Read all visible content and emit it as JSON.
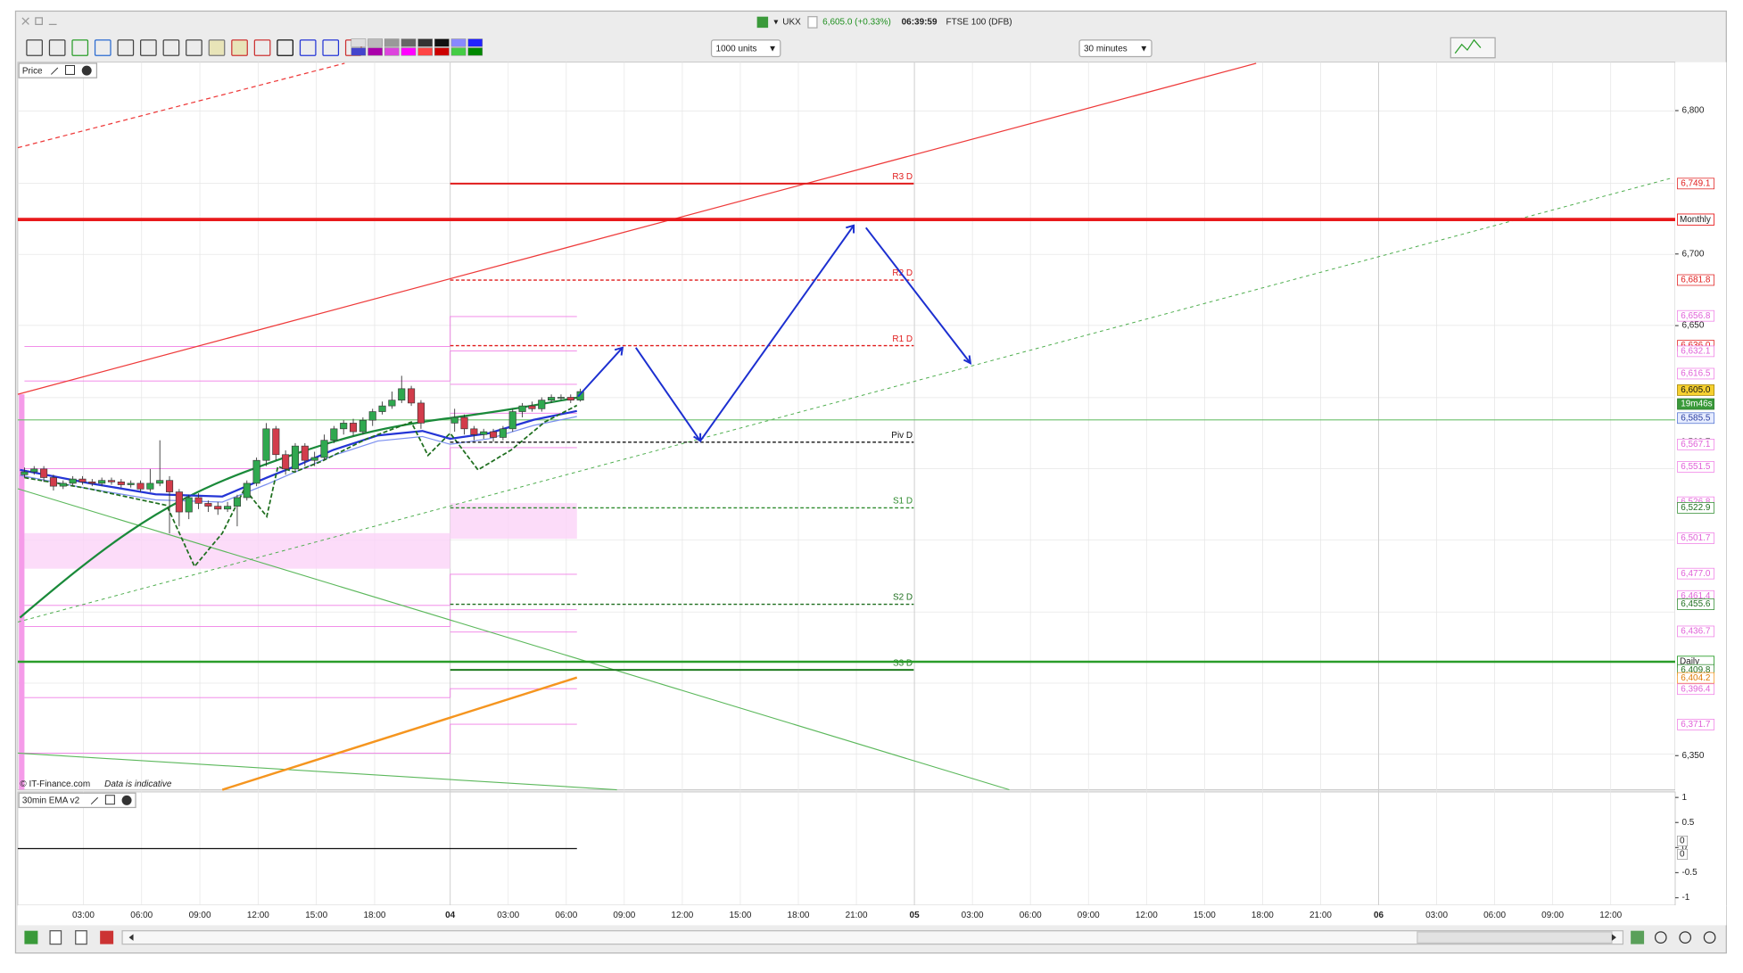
{
  "window": {
    "symbol": "UKX",
    "quote": "6,605.0 (+0.33%)",
    "time": "06:39:59",
    "instrument": "FTSE 100 (DFB)"
  },
  "toolbar": {
    "units": "1000 units",
    "interval": "30 minutes"
  },
  "panels": {
    "price": "Price",
    "indicator": "30min EMA v2",
    "copyright": "© IT-Finance.com",
    "disclaimer": "Data is indicative"
  },
  "price_axis": {
    "ylim": [
      6327,
      6833
    ],
    "yticks": [
      {
        "value": 6800,
        "label": "6,800"
      },
      {
        "value": 6700,
        "label": "6,700"
      },
      {
        "value": 6650,
        "label": "6,650"
      },
      {
        "value": 6350,
        "label": "6,350"
      }
    ]
  },
  "indicator_axis": {
    "ylim": [
      -1.15,
      1.11
    ],
    "yticks": [
      1,
      0.5,
      0,
      -0.5,
      -1
    ],
    "zero_tags": [
      "0",
      "0"
    ]
  },
  "time_axis": {
    "first_day": [
      "03:00",
      "06:00",
      "09:00",
      "12:00",
      "15:00",
      "18:00"
    ],
    "following": [
      "04",
      "03:00",
      "06:00",
      "09:00",
      "12:00",
      "15:00",
      "18:00",
      "21:00",
      "05",
      "03:00",
      "06:00",
      "09:00",
      "12:00",
      "15:00",
      "18:00",
      "21:00",
      "06",
      "03:00",
      "06:00",
      "09:00",
      "12:00"
    ]
  },
  "candles": {
    "open": [
      6546,
      6548,
      6550,
      6544,
      6538,
      6540,
      6543,
      6541,
      6540,
      6542,
      6541,
      6539,
      6540,
      6536,
      6540,
      6542,
      6534,
      6520,
      6530,
      6526,
      6524,
      6522,
      6524,
      6530,
      6540,
      6556,
      6578,
      6560,
      6550,
      6566,
      6556,
      6558,
      6570,
      6578,
      6582,
      6576,
      6584,
      6590,
      6594,
      6598,
      6606,
      6596,
      6582,
      6586,
      6578,
      6574,
      6576,
      6572,
      6578,
      6590,
      6594,
      6592,
      6598,
      6600,
      6600,
      6598
    ],
    "high": [
      6551,
      6552,
      6552,
      6546,
      6542,
      6545,
      6545,
      6543,
      6544,
      6544,
      6543,
      6542,
      6542,
      6550,
      6570,
      6545,
      6536,
      6532,
      6533,
      6528,
      6527,
      6527,
      6532,
      6542,
      6558,
      6582,
      6580,
      6563,
      6568,
      6568,
      6562,
      6574,
      6580,
      6584,
      6585,
      6586,
      6592,
      6597,
      6604,
      6615,
      6608,
      6598,
      6592,
      6588,
      6580,
      6578,
      6578,
      6580,
      6592,
      6596,
      6597,
      6600,
      6602,
      6602,
      6602,
      6606
    ],
    "low": [
      6544,
      6546,
      6541,
      6535,
      6536,
      6538,
      6539,
      6538,
      6538,
      6539,
      6537,
      6537,
      6534,
      6534,
      6538,
      6505,
      6510,
      6515,
      6522,
      6520,
      6518,
      6520,
      6510,
      6528,
      6538,
      6552,
      6556,
      6546,
      6548,
      6552,
      6552,
      6556,
      6568,
      6574,
      6573,
      6574,
      6580,
      6588,
      6592,
      6596,
      6594,
      6578,
      6576,
      6574,
      6570,
      6571,
      6569,
      6570,
      6576,
      6586,
      6590,
      6590,
      6596,
      6598,
      6596,
      6597
    ],
    "close": [
      6548,
      6550,
      6544,
      6538,
      6540,
      6543,
      6541,
      6540,
      6542,
      6541,
      6539,
      6540,
      6536,
      6540,
      6542,
      6534,
      6520,
      6530,
      6526,
      6524,
      6522,
      6524,
      6530,
      6540,
      6556,
      6578,
      6560,
      6550,
      6566,
      6556,
      6558,
      6570,
      6578,
      6582,
      6576,
      6584,
      6590,
      6594,
      6598,
      6606,
      6596,
      6582,
      6586,
      6578,
      6574,
      6576,
      6572,
      6578,
      6590,
      6594,
      6592,
      6598,
      6600,
      6600,
      6598,
      6604
    ]
  },
  "pivots": [
    {
      "name": "R3 D",
      "value": 6749.1,
      "color": "#e01b1b",
      "style": "solid"
    },
    {
      "name": "R2 D",
      "value": 6681.8,
      "color": "#e01b1b",
      "style": "dashed"
    },
    {
      "name": "R1 D",
      "value": 6636.0,
      "color": "#e01b1b",
      "style": "dashed"
    },
    {
      "name": "Piv D",
      "value": 6568.7,
      "color": "#111111",
      "style": "dashed"
    },
    {
      "name": "S1 D",
      "value": 6522.9,
      "color": "#2e8b2e",
      "style": "dashed"
    },
    {
      "name": "S2 D",
      "value": 6455.6,
      "color": "#1e6e1e",
      "style": "dashed"
    },
    {
      "name": "S3 D",
      "value": 6409.8,
      "color": "#1e7a1e",
      "style": "solid"
    }
  ],
  "levels": [
    {
      "label": "Monthly",
      "value": 6724,
      "color": "#e8191b"
    },
    {
      "label": "Daily",
      "value": 6415.5,
      "color": "#2a9d2a"
    }
  ],
  "axis_tags": [
    {
      "label": "6,749.1",
      "value": 6749.1,
      "kind": "red"
    },
    {
      "label": "6,681.8",
      "value": 6681.8,
      "kind": "red"
    },
    {
      "label": "6,656.8",
      "value": 6656.8,
      "kind": "pink"
    },
    {
      "label": "6,636.0",
      "value": 6636.0,
      "kind": "red"
    },
    {
      "label": "6,632.1",
      "value": 6632.1,
      "kind": "pink"
    },
    {
      "label": "6,616.5",
      "value": 6616.5,
      "kind": "pink"
    },
    {
      "label": "6,605.0",
      "value": 6605.0,
      "kind": "yellow"
    },
    {
      "label": "19m46s",
      "value": 6595.3,
      "kind": "timer"
    },
    {
      "label": "6,585.5",
      "value": 6585.5,
      "kind": "blue"
    },
    {
      "label": "6,568.7",
      "value": 6568.7,
      "kind": "black"
    },
    {
      "label": "6,567.1",
      "value": 6567.1,
      "kind": "pink"
    },
    {
      "label": "6,551.5",
      "value": 6551.5,
      "kind": "pink"
    },
    {
      "label": "6,526.8",
      "value": 6526.8,
      "kind": "pink"
    },
    {
      "label": "6,522.9",
      "value": 6522.9,
      "kind": "green"
    },
    {
      "label": "6,501.7",
      "value": 6501.7,
      "kind": "pink"
    },
    {
      "label": "6,477.0",
      "value": 6477.0,
      "kind": "pink"
    },
    {
      "label": "6,461.4",
      "value": 6461.4,
      "kind": "pink"
    },
    {
      "label": "6,455.6",
      "value": 6455.6,
      "kind": "green"
    },
    {
      "label": "6,436.7",
      "value": 6436.7,
      "kind": "pink"
    },
    {
      "label": "6,409.8",
      "value": 6409.8,
      "kind": "green"
    },
    {
      "label": "6,404.2",
      "value": 6404.2,
      "kind": "orange"
    },
    {
      "label": "6,396.4",
      "value": 6396.4,
      "kind": "pink"
    },
    {
      "label": "6,371.7",
      "value": 6371.7,
      "kind": "pink"
    }
  ]
}
